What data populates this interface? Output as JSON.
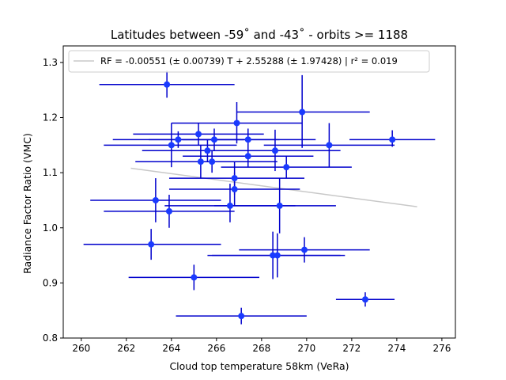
{
  "chart_data": {
    "type": "scatter",
    "title": "Latitudes between -59˚ and -43˚ - orbits >= 1188",
    "xlabel": "Cloud top temperature 58km (VeRa)",
    "ylabel": "Radiance Factor Ratio (VMC)",
    "xlim": [
      259.2,
      276.6
    ],
    "ylim": [
      0.8,
      1.33
    ],
    "x_ticks": [
      260,
      262,
      264,
      266,
      268,
      270,
      272,
      274,
      276
    ],
    "y_ticks": [
      0.8,
      0.9,
      1.0,
      1.1,
      1.2,
      1.3
    ],
    "x_tick_labels": [
      "260",
      "262",
      "264",
      "266",
      "268",
      "270",
      "272",
      "274",
      "276"
    ],
    "y_tick_labels": [
      "0.8",
      "0.9",
      "1.0",
      "1.1",
      "1.2",
      "1.3"
    ],
    "grid": false,
    "legend_placement": "top-left",
    "legend_text": "RF = -0.00551 (± 0.00739) T + 2.55288 (± 1.97428) | r² = 0.019",
    "marker_color": "#1a3aff",
    "errorbar_color": "#0000cc",
    "fit_color": "#c8c8c8",
    "fit_line": {
      "slope": -0.00551,
      "intercept": 2.55288,
      "x_range": [
        262.2,
        274.9
      ]
    },
    "points": [
      {
        "x": 263.8,
        "y": 1.26,
        "xerr": [
          260.8,
          266.8
        ],
        "yerr": [
          1.236,
          1.285
        ]
      },
      {
        "x": 269.8,
        "y": 1.21,
        "xerr": [
          266.9,
          272.8
        ],
        "yerr": [
          1.145,
          1.277
        ]
      },
      {
        "x": 266.9,
        "y": 1.19,
        "xerr": [
          264.0,
          269.8
        ],
        "yerr": [
          1.153,
          1.228
        ]
      },
      {
        "x": 265.2,
        "y": 1.17,
        "xerr": [
          262.3,
          268.1
        ],
        "yerr": [
          1.15,
          1.19
        ]
      },
      {
        "x": 264.3,
        "y": 1.16,
        "xerr": [
          261.4,
          267.2
        ],
        "yerr": [
          1.145,
          1.175
        ]
      },
      {
        "x": 265.9,
        "y": 1.16,
        "xerr": [
          263.0,
          268.8
        ],
        "yerr": [
          1.14,
          1.18
        ]
      },
      {
        "x": 267.4,
        "y": 1.16,
        "xerr": [
          264.5,
          270.4
        ],
        "yerr": [
          1.14,
          1.18
        ]
      },
      {
        "x": 273.8,
        "y": 1.16,
        "xerr": [
          271.9,
          275.7
        ],
        "yerr": [
          1.147,
          1.177
        ]
      },
      {
        "x": 264.0,
        "y": 1.15,
        "xerr": [
          261.0,
          266.9
        ],
        "yerr": [
          1.11,
          1.19
        ]
      },
      {
        "x": 271.0,
        "y": 1.15,
        "xerr": [
          268.1,
          273.9
        ],
        "yerr": [
          1.11,
          1.19
        ]
      },
      {
        "x": 265.6,
        "y": 1.14,
        "xerr": [
          262.7,
          268.5
        ],
        "yerr": [
          1.12,
          1.16
        ]
      },
      {
        "x": 268.6,
        "y": 1.14,
        "xerr": [
          265.7,
          271.5
        ],
        "yerr": [
          1.103,
          1.178
        ]
      },
      {
        "x": 267.4,
        "y": 1.13,
        "xerr": [
          264.5,
          270.3
        ],
        "yerr": [
          1.11,
          1.15
        ]
      },
      {
        "x": 265.3,
        "y": 1.12,
        "xerr": [
          262.4,
          268.2
        ],
        "yerr": [
          1.09,
          1.15
        ]
      },
      {
        "x": 265.8,
        "y": 1.12,
        "xerr": [
          262.9,
          268.7
        ],
        "yerr": [
          1.1,
          1.14
        ]
      },
      {
        "x": 269.1,
        "y": 1.11,
        "xerr": [
          266.2,
          272.0
        ],
        "yerr": [
          1.09,
          1.13
        ]
      },
      {
        "x": 266.8,
        "y": 1.09,
        "xerr": [
          263.9,
          269.9
        ],
        "yerr": [
          1.06,
          1.12
        ]
      },
      {
        "x": 266.8,
        "y": 1.07,
        "xerr": [
          263.9,
          269.7
        ],
        "yerr": [
          1.04,
          1.1
        ]
      },
      {
        "x": 263.3,
        "y": 1.05,
        "xerr": [
          260.4,
          266.2
        ],
        "yerr": [
          1.01,
          1.09
        ]
      },
      {
        "x": 266.6,
        "y": 1.04,
        "xerr": [
          263.7,
          269.5
        ],
        "yerr": [
          1.01,
          1.08
        ]
      },
      {
        "x": 268.8,
        "y": 1.04,
        "xerr": [
          265.9,
          271.3
        ],
        "yerr": [
          0.99,
          1.09
        ]
      },
      {
        "x": 263.9,
        "y": 1.03,
        "xerr": [
          261.0,
          266.8
        ],
        "yerr": [
          1.0,
          1.06
        ]
      },
      {
        "x": 263.1,
        "y": 0.97,
        "xerr": [
          260.1,
          266.2
        ],
        "yerr": [
          0.942,
          0.998
        ]
      },
      {
        "x": 269.9,
        "y": 0.96,
        "xerr": [
          267.0,
          272.8
        ],
        "yerr": [
          0.937,
          0.983
        ]
      },
      {
        "x": 268.5,
        "y": 0.95,
        "xerr": [
          265.6,
          271.5
        ],
        "yerr": [
          0.907,
          0.993
        ]
      },
      {
        "x": 268.7,
        "y": 0.95,
        "xerr": [
          265.8,
          271.7
        ],
        "yerr": [
          0.91,
          0.99
        ]
      },
      {
        "x": 265.0,
        "y": 0.91,
        "xerr": [
          262.1,
          267.9
        ],
        "yerr": [
          0.887,
          0.933
        ]
      },
      {
        "x": 272.6,
        "y": 0.87,
        "xerr": [
          271.3,
          273.9
        ],
        "yerr": [
          0.857,
          0.883
        ]
      },
      {
        "x": 267.1,
        "y": 0.84,
        "xerr": [
          264.2,
          270.0
        ],
        "yerr": [
          0.825,
          0.855
        ]
      }
    ]
  }
}
